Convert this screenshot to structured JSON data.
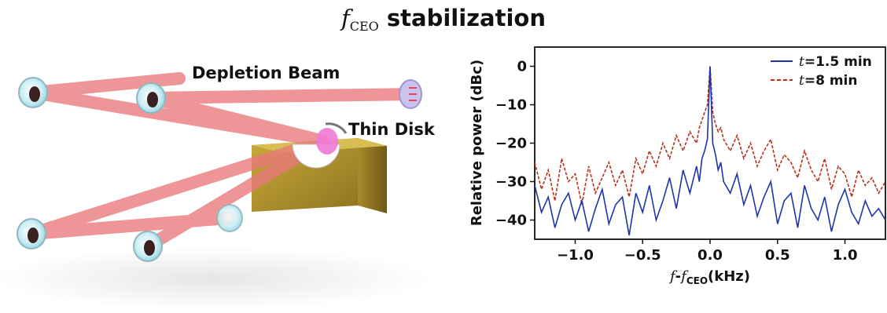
{
  "title": {
    "symbol": "f",
    "subscript": "CEO",
    "text": "stabilization"
  },
  "diagram": {
    "depletion_label": "Depletion Beam",
    "thin_disk_label": "Thin Disk",
    "colors": {
      "beam": "#e8787a",
      "block": "#b89a2e",
      "disk": "#f07ad8",
      "mirror": "#a8e6ef"
    }
  },
  "chart_data": {
    "type": "line",
    "title": "",
    "xlabel_parts": {
      "symbol": "f",
      "sep": "-",
      "sub_symbol": "f",
      "sub": "CEO",
      "unit": "(kHz)"
    },
    "ylabel": "Relative power (dBc)",
    "xlim": [
      -1.3,
      1.3
    ],
    "ylim": [
      -45,
      5
    ],
    "xticks": [
      -1.0,
      -0.5,
      0.0,
      0.5,
      1.0
    ],
    "xtick_labels": [
      "−1.0",
      "−0.5",
      "0.0",
      "0.5",
      "1.0"
    ],
    "yticks": [
      0,
      -10,
      -20,
      -30,
      -40
    ],
    "ytick_labels": [
      "0",
      "−10",
      "−20",
      "−30",
      "−40"
    ],
    "grid": false,
    "legend_position": "top-right",
    "series": [
      {
        "name": "t=1.5 min",
        "name_var": "t",
        "name_rest": "=1.5 min",
        "color": "#1f35a8",
        "style": "solid",
        "x": [
          -1.3,
          -1.25,
          -1.2,
          -1.15,
          -1.1,
          -1.05,
          -1.0,
          -0.95,
          -0.9,
          -0.85,
          -0.8,
          -0.75,
          -0.7,
          -0.65,
          -0.6,
          -0.55,
          -0.5,
          -0.45,
          -0.4,
          -0.35,
          -0.3,
          -0.25,
          -0.2,
          -0.15,
          -0.1,
          -0.08,
          -0.06,
          -0.04,
          -0.02,
          0.0,
          0.02,
          0.04,
          0.06,
          0.08,
          0.1,
          0.15,
          0.2,
          0.25,
          0.3,
          0.35,
          0.4,
          0.45,
          0.5,
          0.55,
          0.6,
          0.65,
          0.7,
          0.75,
          0.8,
          0.85,
          0.9,
          0.95,
          1.0,
          1.05,
          1.1,
          1.15,
          1.2,
          1.25,
          1.3
        ],
        "y": [
          -31,
          -38,
          -34,
          -42,
          -36,
          -33,
          -40,
          -35,
          -43,
          -37,
          -32,
          -41,
          -36,
          -34,
          -44,
          -33,
          -38,
          -31,
          -40,
          -35,
          -29,
          -37,
          -27,
          -33,
          -26,
          -30,
          -24,
          -22,
          -19,
          0,
          -20,
          -23,
          -27,
          -25,
          -30,
          -33,
          -28,
          -36,
          -31,
          -39,
          -34,
          -30,
          -41,
          -35,
          -33,
          -42,
          -31,
          -37,
          -40,
          -34,
          -43,
          -36,
          -32,
          -38,
          -41,
          -35,
          -39,
          -37,
          -40
        ]
      },
      {
        "name": "t=8 min",
        "name_var": "t",
        "name_rest": "=8 min",
        "color": "#b8321e",
        "style": "dashed",
        "x": [
          -1.3,
          -1.25,
          -1.2,
          -1.15,
          -1.1,
          -1.05,
          -1.0,
          -0.95,
          -0.9,
          -0.85,
          -0.8,
          -0.75,
          -0.7,
          -0.65,
          -0.6,
          -0.55,
          -0.5,
          -0.45,
          -0.4,
          -0.35,
          -0.3,
          -0.25,
          -0.2,
          -0.15,
          -0.1,
          -0.08,
          -0.06,
          -0.04,
          -0.02,
          0.0,
          0.02,
          0.04,
          0.06,
          0.08,
          0.1,
          0.15,
          0.2,
          0.25,
          0.3,
          0.35,
          0.4,
          0.45,
          0.5,
          0.55,
          0.6,
          0.65,
          0.7,
          0.75,
          0.8,
          0.85,
          0.9,
          0.95,
          1.0,
          1.05,
          1.1,
          1.15,
          1.2,
          1.25,
          1.3
        ],
        "y": [
          -25,
          -32,
          -27,
          -35,
          -24,
          -30,
          -28,
          -36,
          -26,
          -33,
          -29,
          -25,
          -31,
          -27,
          -34,
          -24,
          -28,
          -22,
          -26,
          -20,
          -24,
          -18,
          -22,
          -17,
          -20,
          -16,
          -14,
          -12,
          -10,
          0,
          -12,
          -15,
          -17,
          -16,
          -19,
          -22,
          -18,
          -24,
          -20,
          -26,
          -22,
          -19,
          -27,
          -23,
          -25,
          -29,
          -22,
          -27,
          -30,
          -24,
          -32,
          -26,
          -28,
          -34,
          -27,
          -31,
          -29,
          -33,
          -30
        ]
      }
    ]
  }
}
